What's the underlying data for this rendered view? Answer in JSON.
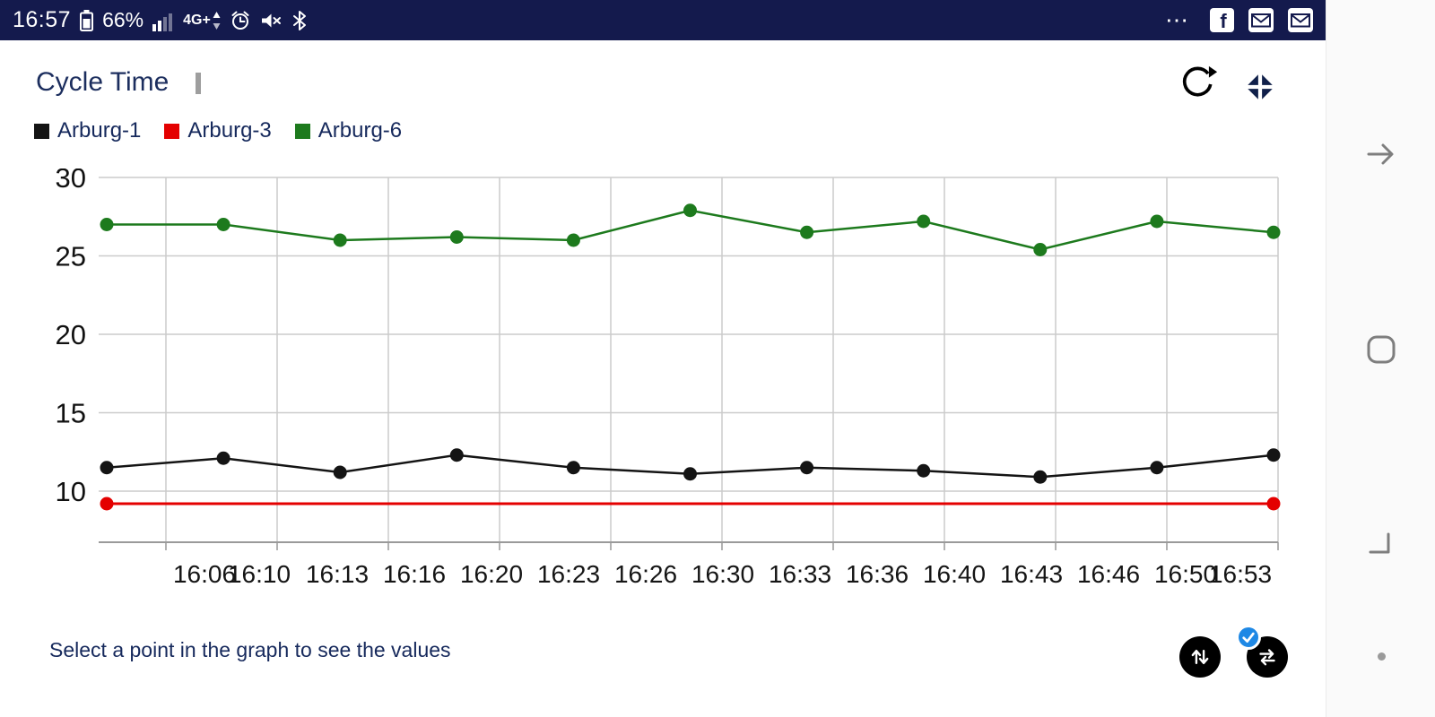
{
  "status_bar": {
    "time": "16:57",
    "battery_percent": "66%",
    "network": "4G+",
    "more_icon": "⋯",
    "left_icons": [
      "battery-icon",
      "signal-icon",
      "network-4g-icon",
      "alarm-icon",
      "mute-icon",
      "bluetooth-icon"
    ],
    "right_icons": [
      "more-icon",
      "facebook-icon",
      "email-icon",
      "email-icon"
    ]
  },
  "header": {
    "title": "Cycle Time"
  },
  "footer": {
    "hint": "Select a point in the graph to see the values"
  },
  "colors": {
    "status_bar_bg": "#141a4d",
    "title_text": "#1c2e5e",
    "badge_blue": "#1e88e5",
    "gridline": "#cbcbcb"
  },
  "chart_data": {
    "type": "line",
    "title": "Cycle Time",
    "ylabel": "",
    "xlabel": "",
    "y_ticks": [
      30,
      25,
      20,
      15,
      10
    ],
    "ylim": [
      6.8,
      31
    ],
    "grid": true,
    "legend_position": "top-left",
    "x_tick_labels": [
      "16:06",
      "16:10",
      "16:13",
      "16:16",
      "16:20",
      "16:23",
      "16:26",
      "16:30",
      "16:33",
      "16:36",
      "16:40",
      "16:43",
      "16:46",
      "16:50",
      "16:53"
    ],
    "series": [
      {
        "name": "Arburg-1",
        "color": "#141414",
        "markers": "all",
        "values": [
          11.5,
          12.1,
          11.2,
          12.3,
          11.5,
          11.1,
          11.5,
          11.3,
          10.9,
          11.5,
          12.3
        ]
      },
      {
        "name": "Arburg-3",
        "color": "#e40000",
        "markers": "ends",
        "values": [
          9.2,
          9.2,
          9.2,
          9.2,
          9.2,
          9.2,
          9.2,
          9.2,
          9.2,
          9.2,
          9.2
        ]
      },
      {
        "name": "Arburg-6",
        "color": "#1d7a1d",
        "markers": "all",
        "values": [
          27.0,
          27.0,
          26.0,
          26.2,
          26.0,
          27.9,
          26.5,
          27.2,
          25.4,
          27.2,
          26.5
        ]
      }
    ]
  }
}
